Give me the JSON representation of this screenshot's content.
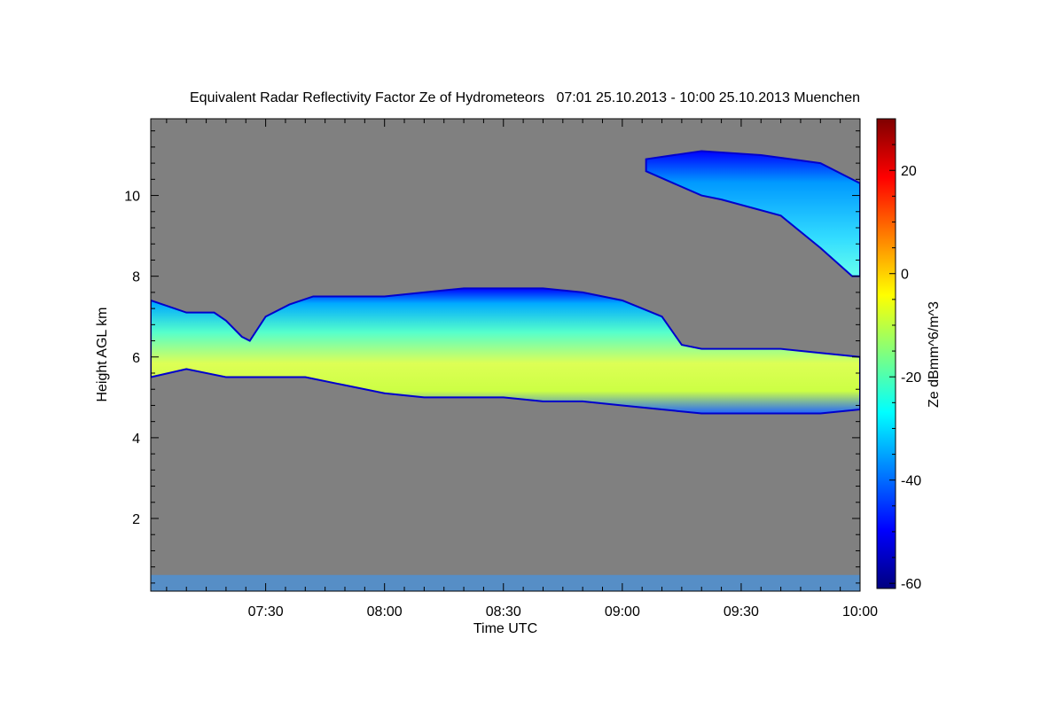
{
  "chart_data": {
    "type": "heatmap",
    "title": "Equivalent Radar Reflectivity Factor Ze of Hydrometeors   07:01 25.10.2013 - 10:00 25.10.2013 Muenchen",
    "xlabel": "Time UTC",
    "ylabel": "Height AGL km",
    "x_ticks": [
      "07:30",
      "08:00",
      "08:30",
      "09:00",
      "09:30",
      "10:00"
    ],
    "x_tick_minutes": [
      450,
      480,
      510,
      540,
      570,
      600
    ],
    "xlim_minutes": [
      421,
      600
    ],
    "y_ticks": [
      "2",
      "4",
      "6",
      "8",
      "10"
    ],
    "y_tick_values": [
      2,
      4,
      6,
      8,
      10
    ],
    "ylim": [
      0.2,
      11.9
    ],
    "colorbar": {
      "label": "Ze dBmm^6/m^3",
      "ticks": [
        "20",
        "0",
        "-20",
        "-40",
        "-60"
      ],
      "tick_values": [
        20,
        0,
        -20,
        -40,
        -60
      ],
      "range": [
        -61,
        30
      ],
      "colormap": [
        "#00007f",
        "#0000ff",
        "#007fff",
        "#00ffff",
        "#7fff7f",
        "#ffff00",
        "#ff7f00",
        "#ff0000",
        "#7f0000"
      ]
    },
    "background_color": "#808080",
    "cloud_layers": [
      {
        "name": "main-layer",
        "top": [
          [
            421,
            7.4
          ],
          [
            427,
            7.2
          ],
          [
            430,
            7.1
          ],
          [
            437,
            7.1
          ],
          [
            440,
            6.9
          ],
          [
            444,
            6.5
          ],
          [
            446,
            6.4
          ],
          [
            450,
            7.0
          ],
          [
            456,
            7.3
          ],
          [
            462,
            7.5
          ],
          [
            470,
            7.5
          ],
          [
            480,
            7.5
          ],
          [
            490,
            7.6
          ],
          [
            500,
            7.7
          ],
          [
            510,
            7.7
          ],
          [
            520,
            7.7
          ],
          [
            530,
            7.6
          ],
          [
            540,
            7.4
          ],
          [
            545,
            7.2
          ],
          [
            550,
            7.0
          ],
          [
            555,
            6.3
          ],
          [
            560,
            6.2
          ],
          [
            570,
            6.2
          ],
          [
            580,
            6.2
          ],
          [
            590,
            6.1
          ],
          [
            600,
            6.0
          ]
        ],
        "bottom": [
          [
            421,
            5.5
          ],
          [
            430,
            5.7
          ],
          [
            440,
            5.5
          ],
          [
            450,
            5.5
          ],
          [
            460,
            5.5
          ],
          [
            470,
            5.3
          ],
          [
            480,
            5.1
          ],
          [
            490,
            5.0
          ],
          [
            500,
            5.0
          ],
          [
            510,
            5.0
          ],
          [
            520,
            4.9
          ],
          [
            530,
            4.9
          ],
          [
            540,
            4.8
          ],
          [
            550,
            4.7
          ],
          [
            560,
            4.6
          ],
          [
            570,
            4.6
          ],
          [
            580,
            4.6
          ],
          [
            590,
            4.6
          ],
          [
            600,
            4.7
          ]
        ]
      },
      {
        "name": "upper-cirrus",
        "top": [
          [
            546,
            10.9
          ],
          [
            560,
            11.1
          ],
          [
            575,
            11.0
          ],
          [
            590,
            10.8
          ],
          [
            600,
            10.3
          ]
        ],
        "bottom": [
          [
            546,
            10.6
          ],
          [
            560,
            10.0
          ],
          [
            565,
            9.9
          ],
          [
            580,
            9.5
          ],
          [
            590,
            8.7
          ],
          [
            598,
            8.0
          ],
          [
            600,
            8.0
          ]
        ]
      }
    ],
    "clutter_band": {
      "from_minutes": 421,
      "to_minutes": 600,
      "bottom": 0.2,
      "top": 0.6
    }
  }
}
